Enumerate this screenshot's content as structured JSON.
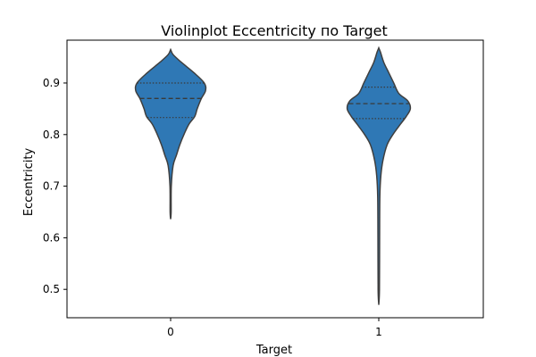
{
  "chart_data": {
    "type": "violin",
    "title": "Violinplot Eccentricity по Target",
    "xlabel": "Target",
    "ylabel": "Eccentricity",
    "categories": [
      "0",
      "1"
    ],
    "ylim": [
      0.445,
      0.983
    ],
    "yticks": [
      0.5,
      0.6,
      0.7,
      0.8,
      0.9
    ],
    "ytick_labels": [
      "0.5",
      "0.6",
      "0.7",
      "0.8",
      "0.9"
    ],
    "grid": false,
    "fill_color": "#2f78b5",
    "edge_color": "#3f3f3f",
    "violins": [
      {
        "category": "0",
        "min": 0.636,
        "max": 0.965,
        "q1": 0.833,
        "median": 0.87,
        "q3": 0.9,
        "profile": [
          [
            0.636,
            0.0
          ],
          [
            0.65,
            0.006
          ],
          [
            0.7,
            0.008
          ],
          [
            0.74,
            0.03
          ],
          [
            0.76,
            0.07
          ],
          [
            0.78,
            0.11
          ],
          [
            0.8,
            0.16
          ],
          [
            0.82,
            0.22
          ],
          [
            0.835,
            0.29
          ],
          [
            0.85,
            0.32
          ],
          [
            0.87,
            0.37
          ],
          [
            0.885,
            0.42
          ],
          [
            0.9,
            0.405
          ],
          [
            0.92,
            0.28
          ],
          [
            0.94,
            0.13
          ],
          [
            0.955,
            0.03
          ],
          [
            0.965,
            0.0
          ]
        ]
      },
      {
        "category": "1",
        "min": 0.47,
        "max": 0.968,
        "q1": 0.831,
        "median": 0.86,
        "q3": 0.892,
        "profile": [
          [
            0.47,
            0.0
          ],
          [
            0.5,
            0.008
          ],
          [
            0.6,
            0.01
          ],
          [
            0.68,
            0.013
          ],
          [
            0.72,
            0.025
          ],
          [
            0.75,
            0.05
          ],
          [
            0.78,
            0.1
          ],
          [
            0.8,
            0.17
          ],
          [
            0.82,
            0.26
          ],
          [
            0.835,
            0.33
          ],
          [
            0.85,
            0.38
          ],
          [
            0.865,
            0.35
          ],
          [
            0.88,
            0.24
          ],
          [
            0.9,
            0.18
          ],
          [
            0.92,
            0.12
          ],
          [
            0.94,
            0.06
          ],
          [
            0.96,
            0.02
          ],
          [
            0.968,
            0.0
          ]
        ]
      }
    ]
  }
}
